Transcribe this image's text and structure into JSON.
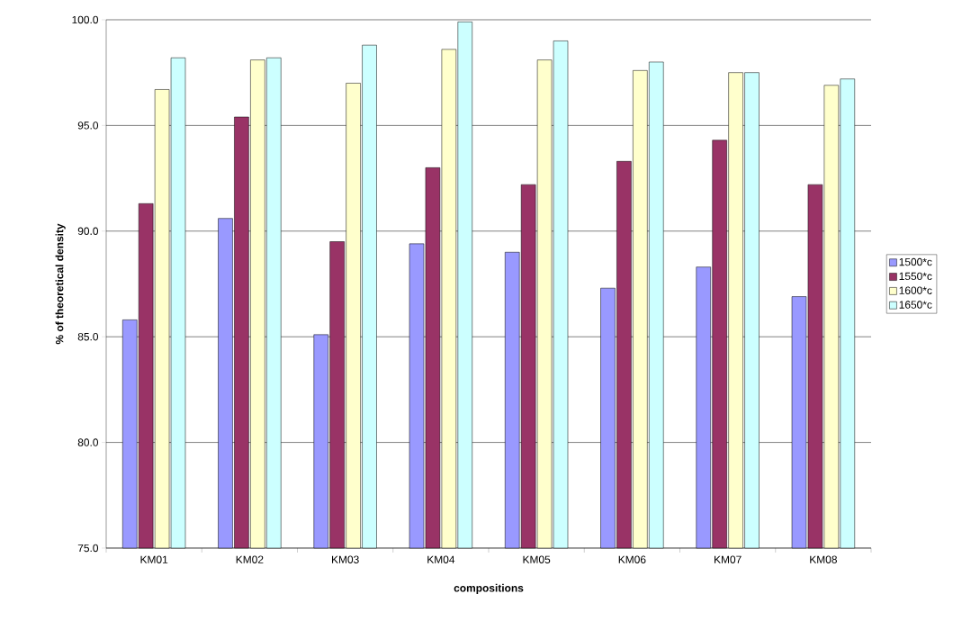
{
  "chart_data": {
    "type": "bar",
    "xlabel": "compositions",
    "ylabel": "% of theoretical  density",
    "categories": [
      "KM01",
      "KM02",
      "KM03",
      "KM04",
      "KM05",
      "KM06",
      "KM07",
      "KM08"
    ],
    "series": [
      {
        "name": "1500*c",
        "color": "#9999ff",
        "values": [
          85.8,
          90.6,
          85.1,
          89.4,
          89.0,
          87.3,
          88.3,
          86.9
        ]
      },
      {
        "name": "1550*c",
        "color": "#993366",
        "values": [
          91.3,
          95.4,
          89.5,
          93.0,
          92.2,
          93.3,
          94.3,
          92.2
        ]
      },
      {
        "name": "1600*c",
        "color": "#ffffcc",
        "values": [
          96.7,
          98.1,
          97.0,
          98.6,
          98.1,
          97.6,
          97.5,
          96.9
        ]
      },
      {
        "name": "1650*c",
        "color": "#ccffff",
        "values": [
          98.2,
          98.2,
          98.8,
          99.9,
          99.0,
          98.0,
          97.5,
          97.2
        ]
      }
    ],
    "ylim": [
      75,
      100
    ],
    "yticks": [
      {
        "value": 75,
        "label": "75.0"
      },
      {
        "value": 80,
        "label": "80.0"
      },
      {
        "value": 85,
        "label": "85.0"
      },
      {
        "value": 90,
        "label": "90.0"
      },
      {
        "value": 95,
        "label": "95.0"
      },
      {
        "value": 100,
        "label": "100.0"
      }
    ],
    "grid": "y",
    "legend": "right"
  }
}
